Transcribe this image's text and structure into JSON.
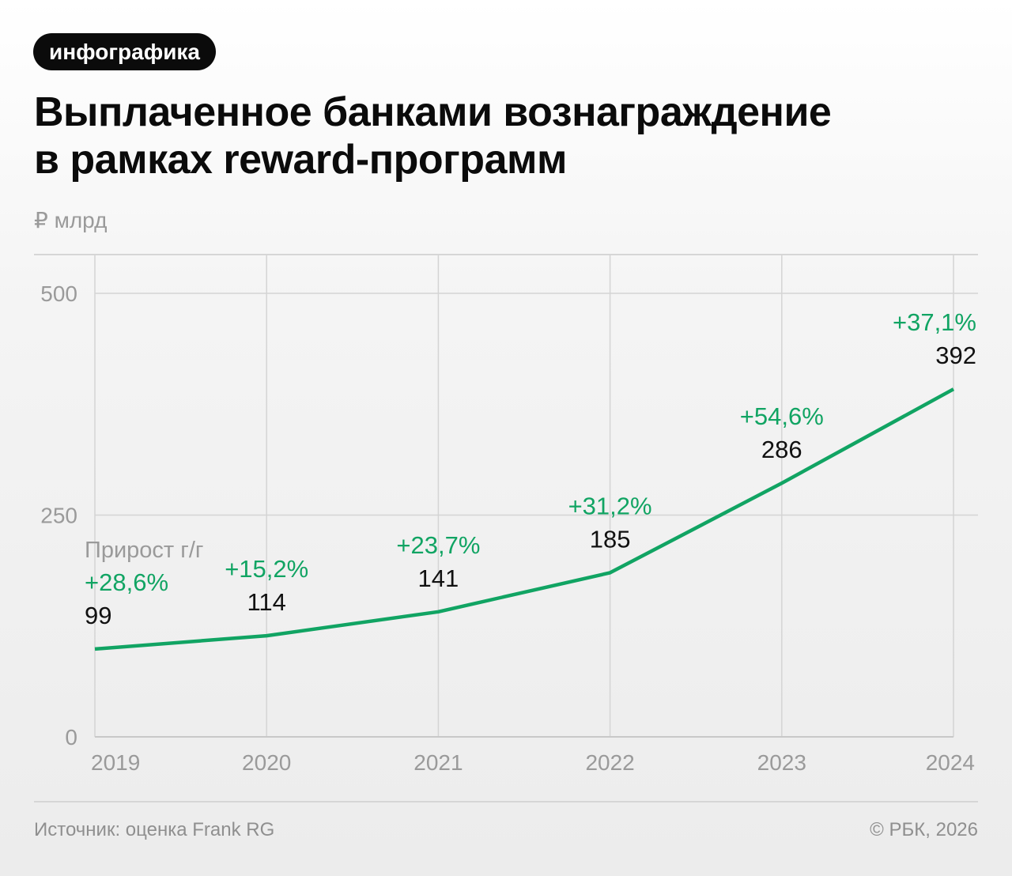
{
  "badge": "инфографика",
  "title_line1": "Выплаченное банками вознаграждение",
  "title_line2": "в рамках reward-программ",
  "unit": "₽ млрд",
  "source": "Источник: оценка Frank RG",
  "copyright": "© РБК, 2026",
  "colors": {
    "line": "#11a463",
    "growth": "#11a463",
    "value": "#111111",
    "axis": "#9a9a9a",
    "grid": "#d4d4d4"
  },
  "chart_data": {
    "type": "line",
    "categories": [
      "2019",
      "2020",
      "2021",
      "2022",
      "2023",
      "2024"
    ],
    "values": [
      99,
      114,
      141,
      185,
      286,
      392
    ],
    "growth_label": "Прирост г/г",
    "growth": [
      "+28,6%",
      "+15,2%",
      "+23,7%",
      "+31,2%",
      "+54,6%",
      "+37,1%"
    ],
    "yticks": [
      0,
      250,
      500
    ],
    "ylim": [
      0,
      500
    ],
    "grid": true,
    "ylabel": "₽ млрд"
  }
}
